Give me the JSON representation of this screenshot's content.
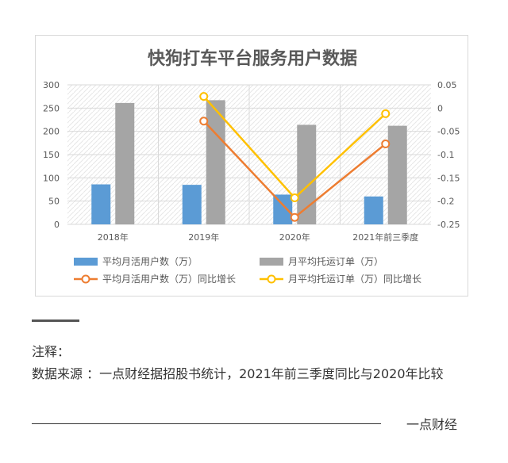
{
  "chart_data": {
    "type": "bar",
    "title": "快狗打车平台服务用户数据",
    "categories": [
      "2018年",
      "2019年",
      "2020年",
      "2021年前三季度"
    ],
    "series": [
      {
        "name": "平均月活用户数（万）",
        "kind": "bar",
        "axis": "left",
        "color": "#5b9bd5",
        "values": [
          86,
          85,
          64,
          60
        ]
      },
      {
        "name": "月平均托运订单（万）",
        "kind": "bar",
        "axis": "left",
        "color": "#a5a5a5",
        "values": [
          261,
          267,
          214,
          212
        ]
      },
      {
        "name": "平均月活用户数（万）同比增长",
        "kind": "line",
        "axis": "right",
        "color": "#ed7d31",
        "values": [
          null,
          -0.028,
          -0.235,
          -0.077
        ]
      },
      {
        "name": "月平均托运订单（万）同比增长",
        "kind": "line",
        "axis": "right",
        "color": "#ffc000",
        "values": [
          null,
          0.025,
          -0.193,
          -0.012
        ]
      }
    ],
    "y_left": {
      "min": 0,
      "max": 300,
      "ticks": [
        0,
        50,
        100,
        150,
        200,
        250,
        300
      ]
    },
    "y_right": {
      "min": -0.25,
      "max": 0.05,
      "ticks": [
        "0.05",
        "0",
        "-0.05",
        "-0.1",
        "-0.15",
        "-0.2",
        "-0.25"
      ]
    },
    "grid": true,
    "legend_position": "bottom"
  },
  "notes": {
    "title": "注释：",
    "body": "数据来源 ：一点财经据招股书统计，2021年前三季度同比与2020年比较"
  },
  "footer": {
    "brand": "一点财经"
  }
}
